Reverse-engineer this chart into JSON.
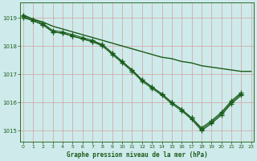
{
  "title": "Graphe pression niveau de la mer (hPa)",
  "hours": [
    0,
    1,
    2,
    3,
    4,
    5,
    6,
    7,
    8,
    9,
    10,
    11,
    12,
    13,
    14,
    15,
    16,
    17,
    18,
    19,
    20,
    21,
    22,
    23
  ],
  "line_flat": [
    1019.1,
    1018.95,
    1018.85,
    1018.7,
    1018.6,
    1018.5,
    1018.4,
    1018.3,
    1018.2,
    1018.1,
    1018.0,
    1017.9,
    1017.8,
    1017.7,
    1017.6,
    1017.55,
    1017.45,
    1017.4,
    1017.3,
    1017.25,
    1017.2,
    1017.15,
    1017.1,
    1017.1
  ],
  "line2": [
    1019.1,
    1018.95,
    1018.8,
    1018.55,
    1018.5,
    1018.4,
    1018.3,
    1018.2,
    1018.05,
    1017.75,
    1017.45,
    1017.15,
    1016.8,
    1016.55,
    1016.3,
    1016.0,
    1015.75,
    1015.45,
    1015.05,
    1015.3,
    1015.6,
    1016.0,
    1016.3,
    null
  ],
  "line3": [
    1019.0,
    1018.9,
    1018.75,
    1018.5,
    1018.45,
    1018.35,
    1018.25,
    1018.15,
    1018.0,
    1017.7,
    1017.4,
    1017.1,
    1016.75,
    1016.5,
    1016.25,
    1015.95,
    1015.7,
    1015.4,
    1015.0,
    1015.25,
    1015.55,
    1015.95,
    1016.25,
    null
  ],
  "line4": [
    1019.05,
    1018.9,
    1018.75,
    1018.5,
    1018.45,
    1018.35,
    1018.25,
    1018.15,
    1018.05,
    1017.75,
    1017.45,
    1017.15,
    1016.8,
    1016.55,
    1016.3,
    1016.0,
    1015.75,
    1015.45,
    1015.1,
    1015.35,
    1015.65,
    1016.05,
    1016.35,
    null
  ],
  "bg_color": "#ceeaea",
  "grid_color_major": "#c8d8d8",
  "line_color": "#1a5c1a",
  "ylim_min": 1014.6,
  "ylim_max": 1019.55,
  "yticks": [
    1015,
    1016,
    1017,
    1018,
    1019
  ],
  "xticks": [
    0,
    1,
    2,
    3,
    4,
    5,
    6,
    7,
    8,
    9,
    10,
    11,
    12,
    13,
    14,
    15,
    16,
    17,
    18,
    19,
    20,
    21,
    22,
    23
  ]
}
